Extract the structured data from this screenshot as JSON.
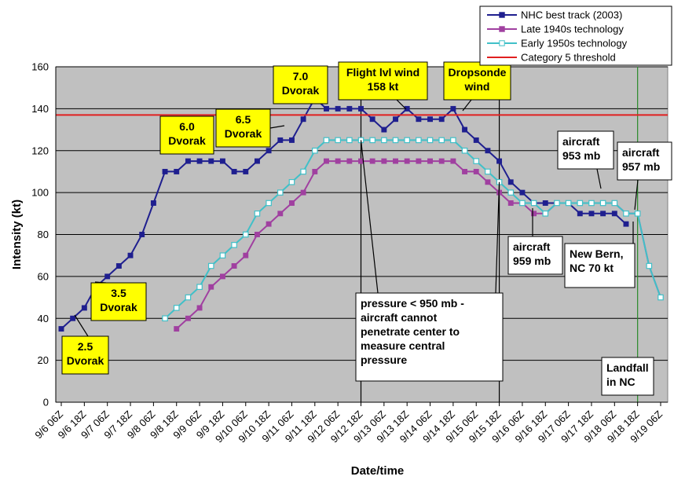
{
  "chart_data": {
    "type": "line",
    "xlabel": "Date/time",
    "ylabel": "Intensity (kt)",
    "ylim": [
      0,
      160
    ],
    "yticks": [
      0,
      20,
      40,
      60,
      80,
      100,
      120,
      140,
      160
    ],
    "grid": true,
    "legend_position": "top-right",
    "plot_background": "#c0c0c0",
    "x_tick_labels": [
      "9/6 06Z",
      "9/6 18Z",
      "9/7 06Z",
      "9/7 18Z",
      "9/8 06Z",
      "9/8 18Z",
      "9/9 06Z",
      "9/9 18Z",
      "9/10 06Z",
      "9/10 18Z",
      "9/11 06Z",
      "9/11 18Z",
      "9/12 06Z",
      "9/12 18Z",
      "9/13 06Z",
      "9/13 18Z",
      "9/14 06Z",
      "9/14 18Z",
      "9/15 06Z",
      "9/15 18Z",
      "9/16 06Z",
      "9/16 18Z",
      "9/17 06Z",
      "9/17 18Z",
      "9/18 06Z",
      "9/18 18Z",
      "9/19 06Z"
    ],
    "x": [
      "9/6 06Z",
      "9/6 12Z",
      "9/6 18Z",
      "9/7 00Z",
      "9/7 06Z",
      "9/7 12Z",
      "9/7 18Z",
      "9/8 00Z",
      "9/8 06Z",
      "9/8 12Z",
      "9/8 18Z",
      "9/9 00Z",
      "9/9 06Z",
      "9/9 12Z",
      "9/9 18Z",
      "9/10 00Z",
      "9/10 06Z",
      "9/10 12Z",
      "9/10 18Z",
      "9/11 00Z",
      "9/11 06Z",
      "9/11 12Z",
      "9/11 18Z",
      "9/12 00Z",
      "9/12 06Z",
      "9/12 12Z",
      "9/12 18Z",
      "9/13 00Z",
      "9/13 06Z",
      "9/13 12Z",
      "9/13 18Z",
      "9/14 00Z",
      "9/14 06Z",
      "9/14 12Z",
      "9/14 18Z",
      "9/15 00Z",
      "9/15 06Z",
      "9/15 12Z",
      "9/15 18Z",
      "9/16 00Z",
      "9/16 06Z",
      "9/16 12Z",
      "9/16 18Z",
      "9/17 00Z",
      "9/17 06Z",
      "9/17 12Z",
      "9/17 18Z",
      "9/18 00Z",
      "9/18 06Z",
      "9/18 12Z",
      "9/18 18Z",
      "9/19 00Z",
      "9/19 06Z"
    ],
    "series": [
      {
        "name": "NHC best track (2003)",
        "color": "#1f1f8f",
        "marker": "filled-square",
        "values": [
          35,
          40,
          45,
          55,
          60,
          65,
          70,
          80,
          95,
          110,
          110,
          115,
          115,
          115,
          115,
          110,
          110,
          115,
          120,
          125,
          125,
          135,
          145,
          140,
          140,
          140,
          140,
          135,
          130,
          135,
          140,
          135,
          135,
          135,
          140,
          130,
          125,
          120,
          115,
          105,
          100,
          95,
          95,
          95,
          95,
          90,
          90,
          90,
          90,
          85,
          null,
          null,
          null
        ]
      },
      {
        "name": "Late 1940s technology",
        "color": "#a040a0",
        "marker": "filled-square",
        "values": [
          null,
          null,
          null,
          null,
          null,
          null,
          null,
          null,
          null,
          null,
          35,
          40,
          45,
          55,
          60,
          65,
          70,
          80,
          85,
          90,
          95,
          100,
          110,
          115,
          115,
          115,
          115,
          115,
          115,
          115,
          115,
          115,
          115,
          115,
          115,
          110,
          110,
          105,
          100,
          95,
          95,
          90,
          90,
          95,
          95,
          95,
          95,
          95,
          95,
          90,
          90,
          65,
          50
        ]
      },
      {
        "name": "Early 1950s technology",
        "color": "#40c0c8",
        "marker": "hollow-square",
        "values": [
          null,
          null,
          null,
          null,
          null,
          null,
          null,
          null,
          null,
          40,
          45,
          50,
          55,
          65,
          70,
          75,
          80,
          90,
          95,
          100,
          105,
          110,
          120,
          125,
          125,
          125,
          125,
          125,
          125,
          125,
          125,
          125,
          125,
          125,
          125,
          120,
          115,
          110,
          105,
          100,
          95,
          95,
          90,
          95,
          95,
          95,
          95,
          95,
          95,
          90,
          90,
          65,
          50
        ]
      },
      {
        "name": "Category 5 threshold",
        "color": "#e02020",
        "marker": "none",
        "constant": 137
      }
    ],
    "vertical_lines": [
      {
        "x_index": 26,
        "color": "#000000"
      },
      {
        "x_index": 38,
        "color": "#000000"
      },
      {
        "x_index": 50,
        "color": "#2a8a2a"
      }
    ],
    "annotations": [
      {
        "id": "ann-2-5-dvorak",
        "lines": [
          "2.5",
          "Dvorak"
        ],
        "style": "yellow"
      },
      {
        "id": "ann-3-5-dvorak",
        "lines": [
          "3.5",
          "Dvorak"
        ],
        "style": "yellow"
      },
      {
        "id": "ann-6-0-dvorak",
        "lines": [
          "6.0",
          "Dvorak"
        ],
        "style": "yellow"
      },
      {
        "id": "ann-6-5-dvorak",
        "lines": [
          "6.5",
          "Dvorak"
        ],
        "style": "yellow"
      },
      {
        "id": "ann-7-0-dvorak",
        "lines": [
          "7.0",
          "Dvorak"
        ],
        "style": "yellow"
      },
      {
        "id": "ann-flight-lvl-wind",
        "lines": [
          "Flight lvl wind",
          "158 kt"
        ],
        "style": "yellow"
      },
      {
        "id": "ann-dropsonde-wind",
        "lines": [
          "Dropsonde",
          "wind"
        ],
        "style": "yellow"
      },
      {
        "id": "ann-aircraft-953",
        "lines": [
          "aircraft",
          "953 mb"
        ],
        "style": "white"
      },
      {
        "id": "ann-aircraft-957",
        "lines": [
          "aircraft",
          "957 mb"
        ],
        "style": "white"
      },
      {
        "id": "ann-aircraft-959",
        "lines": [
          "aircraft",
          "959 mb"
        ],
        "style": "white"
      },
      {
        "id": "ann-new-bern",
        "lines": [
          "New Bern,",
          "NC 70 kt"
        ],
        "style": "white"
      },
      {
        "id": "ann-landfall",
        "lines": [
          "Landfall",
          "in NC"
        ],
        "style": "white"
      },
      {
        "id": "ann-pressure",
        "lines": [
          "pressure < 950 mb -",
          "aircraft cannot",
          "penetrate center to",
          "measure central",
          "pressure"
        ],
        "style": "white"
      }
    ]
  }
}
